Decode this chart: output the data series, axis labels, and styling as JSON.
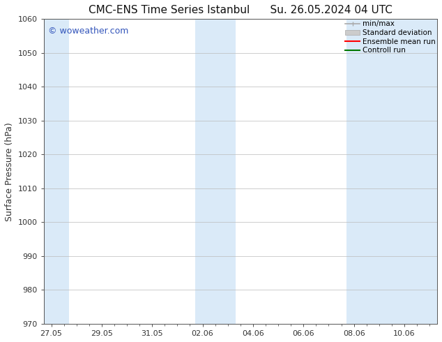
{
  "title_left": "CMC-ENS Time Series Istanbul",
  "title_right": "Su. 26.05.2024 04 UTC",
  "ylabel": "Surface Pressure (hPa)",
  "ylim": [
    970,
    1060
  ],
  "yticks": [
    970,
    980,
    990,
    1000,
    1010,
    1020,
    1030,
    1040,
    1050,
    1060
  ],
  "xtick_labels": [
    "27.05",
    "29.05",
    "31.05",
    "02.06",
    "04.06",
    "06.06",
    "08.06",
    "10.06"
  ],
  "x_dates": [
    0,
    2,
    4,
    6,
    8,
    10,
    12,
    14
  ],
  "xlim": [
    -0.3,
    15.3
  ],
  "shaded_bands": [
    {
      "x_start": -0.3,
      "x_end": 0.7
    },
    {
      "x_start": 5.7,
      "x_end": 7.3
    },
    {
      "x_start": 11.7,
      "x_end": 15.3
    }
  ],
  "shaded_color": "#daeaf8",
  "background_color": "#ffffff",
  "plot_bg_color": "#ffffff",
  "watermark_text": "© woweather.com",
  "watermark_color": "#3355bb",
  "legend_labels": [
    "min/max",
    "Standard deviation",
    "Ensemble mean run",
    "Controll run"
  ],
  "legend_line_color": "#aaaaaa",
  "legend_fill_color": "#cccccc",
  "legend_red": "#ff0000",
  "legend_green": "#007700",
  "title_fontsize": 11,
  "axis_label_fontsize": 9,
  "tick_fontsize": 8,
  "legend_fontsize": 7.5,
  "watermark_fontsize": 9,
  "grid_color": "#bbbbbb",
  "spine_color": "#555555",
  "tick_color": "#333333"
}
